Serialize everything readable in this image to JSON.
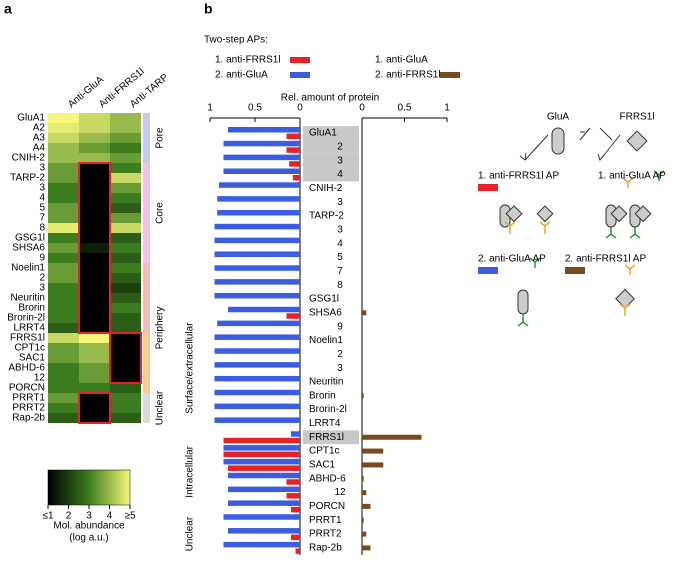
{
  "panel_labels": [
    "a",
    "b"
  ],
  "chart_data": [
    {
      "type": "heatmap",
      "columns": [
        "Anti-GluA",
        "Anti-FRRS1l",
        "Anti-TARP"
      ],
      "rows": [
        "GluA1",
        "A2",
        "A3",
        "A4",
        "CNIH-2",
        "3",
        "TARP-2",
        "3",
        "4",
        "5",
        "7",
        "8",
        "GSG1l",
        "SHSA6",
        "9",
        "Noelin1",
        "2",
        "3",
        "Neuritin",
        "Brorin",
        "Brorin-2l",
        "LRRT4",
        "FRRS1l",
        "CPT1c",
        "SAC1",
        "ABHD-6",
        "12",
        "PORCN",
        "PRRT1",
        "PRRT2",
        "Rap-2b"
      ],
      "values": [
        [
          5,
          4.5,
          4
        ],
        [
          4.8,
          4.5,
          4
        ],
        [
          4.5,
          4,
          3.5
        ],
        [
          4,
          3.5,
          3
        ],
        [
          4,
          4,
          3.5
        ],
        [
          3.5,
          1,
          3
        ],
        [
          3.5,
          1,
          4.5
        ],
        [
          3,
          1,
          3.5
        ],
        [
          3,
          1,
          3
        ],
        [
          3.5,
          1,
          2.5
        ],
        [
          3.5,
          1,
          3.5
        ],
        [
          4.8,
          1,
          4.5
        ],
        [
          3,
          1,
          2.5
        ],
        [
          3.5,
          1.5,
          3
        ],
        [
          3,
          1,
          2.5
        ],
        [
          3.5,
          1,
          3
        ],
        [
          3.5,
          1,
          2.5
        ],
        [
          3,
          1,
          2
        ],
        [
          3,
          1,
          2.5
        ],
        [
          3,
          1,
          3
        ],
        [
          3,
          1,
          2.5
        ],
        [
          2.5,
          1,
          2.5
        ],
        [
          4.5,
          5,
          1
        ],
        [
          3.5,
          4,
          1
        ],
        [
          3.5,
          4,
          1
        ],
        [
          3,
          3.5,
          1
        ],
        [
          3,
          3.5,
          1
        ],
        [
          3,
          3,
          2.5
        ],
        [
          3.5,
          1,
          3
        ],
        [
          3,
          1,
          3
        ],
        [
          2.5,
          1,
          2.5
        ]
      ],
      "groups": [
        "Pore",
        "Core",
        "Periphery",
        "Unclear"
      ],
      "zlim": [
        1,
        5
      ],
      "colorbar_ticks": [
        {
          "value": 1,
          "label": "≤1"
        },
        2,
        3,
        4,
        {
          "value": 5,
          "label": "≥5"
        }
      ],
      "colorbar_label": [
        "Mol. abundance",
        "(log a.u.)"
      ]
    },
    {
      "type": "bar",
      "title": "Two-step APs:",
      "xlabel": "Rel. amount of protein",
      "categories": [
        "GluA1",
        "2",
        "3",
        "4",
        "CNIH-2",
        "3",
        "TARP-2",
        "3",
        "4",
        "5",
        "7",
        "8",
        "GSG1l",
        "SHSA6",
        "9",
        "Noelin1",
        "2",
        "3",
        "Neuritin",
        "Brorin",
        "Brorin-2l",
        "LRRT4",
        "FRRS1l",
        "CPT1c",
        "SAC1",
        "ABHD-6",
        "12",
        "PORCN",
        "PRRT1",
        "PRRT2",
        "Rap-2b"
      ],
      "series": [
        {
          "name": "1. anti-FRRS1l",
          "color": "#e52228",
          "axis": "x",
          "values": [
            0.15,
            0.15,
            0.12,
            0.08,
            0,
            0,
            0,
            0,
            0,
            0,
            0,
            0,
            0,
            0.15,
            0,
            0,
            0,
            0,
            0,
            0,
            0,
            0,
            0.85,
            0.85,
            0.8,
            0.15,
            0.15,
            0.1,
            0,
            0.1,
            0.05
          ]
        },
        {
          "name": "2. anti-GluA",
          "color": "#3b5de0",
          "axis": "x",
          "values": [
            0.8,
            0.85,
            0.85,
            0.85,
            0.9,
            0.92,
            0.92,
            0.95,
            0.95,
            0.95,
            0.95,
            0.95,
            0.95,
            0.8,
            0.92,
            0.95,
            0.95,
            0.95,
            0.95,
            0.95,
            0.95,
            0.95,
            0.1,
            0.85,
            0.85,
            0.8,
            0.8,
            0.8,
            0.85,
            0.8,
            0.85
          ]
        },
        {
          "name": "2. anti-FRRS1l",
          "color": "#7b4a1c",
          "axis": "x2",
          "values": [
            0,
            0,
            0,
            0,
            0,
            0,
            0,
            0,
            0,
            0,
            0,
            0,
            0,
            0.05,
            0,
            0,
            0,
            0,
            0,
            0.02,
            0,
            0,
            0.7,
            0.25,
            0.25,
            0.02,
            0.05,
            0.1,
            0.02,
            0.05,
            0.1
          ]
        }
      ],
      "legend_extra": "1. anti-GluA",
      "xlim": [
        1,
        0
      ],
      "xticks": [
        1,
        0.5,
        0
      ],
      "x2lim": [
        0,
        1
      ],
      "x2ticks": [
        0,
        0.5,
        1
      ],
      "location_groups": [
        "Surface/extracellular",
        "Intracellular",
        "Unclear"
      ]
    }
  ],
  "diagram": {
    "labels": [
      "GluA",
      "FRRS1l"
    ],
    "steps": [
      "1. anti-FRRS1l AP",
      "1. anti-GluA AP",
      "2. anti-GluA AP",
      "2. anti-FRRS1l AP"
    ]
  }
}
